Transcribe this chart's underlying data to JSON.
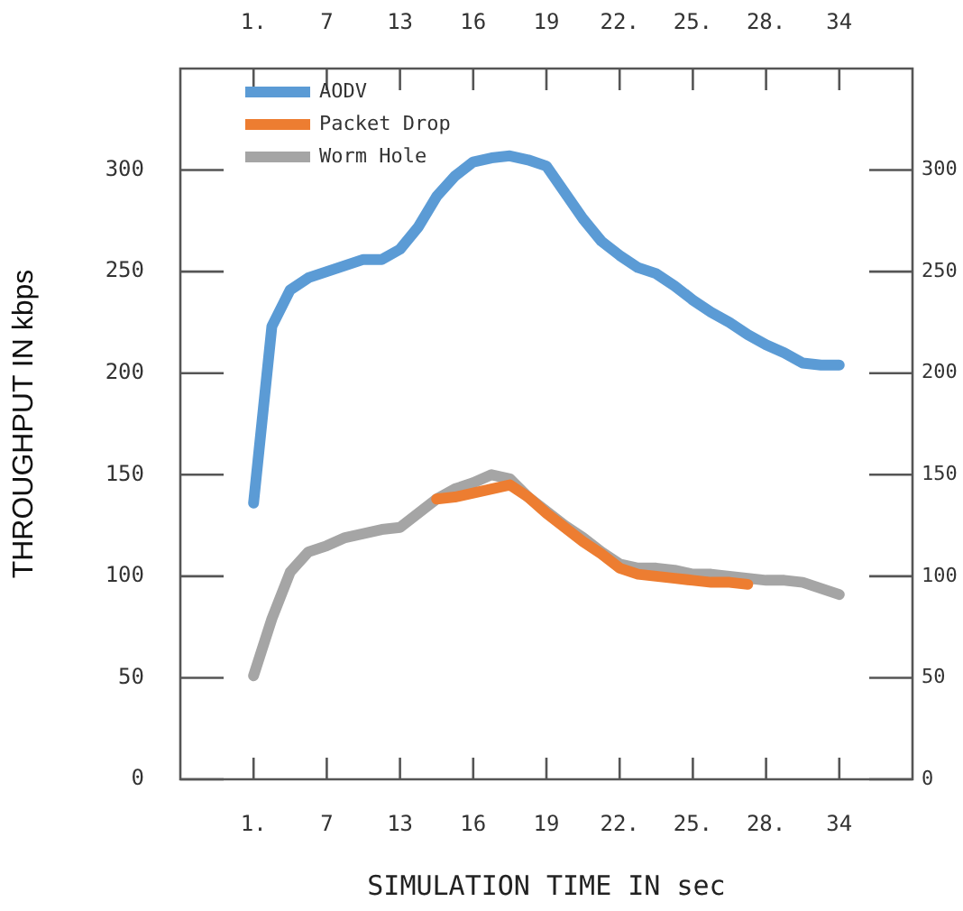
{
  "chart_data": {
    "type": "line",
    "xlabel": "SIMULATION TIME IN sec",
    "ylabel": "THROUGHPUT IN kbps",
    "categories": [
      "1.",
      null,
      null,
      null,
      "7",
      null,
      null,
      null,
      "13",
      null,
      null,
      null,
      "16",
      null,
      null,
      null,
      "19",
      null,
      null,
      null,
      "22.",
      null,
      null,
      null,
      "25.",
      null,
      null,
      null,
      "28.",
      null,
      null,
      null,
      "34"
    ],
    "series": [
      {
        "name": "AODV",
        "color": "#5b9bd5",
        "values": [
          136,
          223,
          241,
          247,
          250,
          253,
          256,
          256,
          261,
          272,
          287,
          297,
          304,
          306,
          307,
          305,
          302,
          289,
          276,
          265,
          258,
          252,
          249,
          243,
          236,
          230,
          225,
          219,
          214,
          210,
          205,
          204,
          204
        ]
      },
      {
        "name": "Packet Drop",
        "color": "#ed7d31",
        "values": [
          null,
          null,
          null,
          null,
          null,
          null,
          null,
          null,
          null,
          null,
          138,
          139,
          141,
          143,
          145,
          139,
          131,
          124,
          117,
          111,
          104,
          101,
          100,
          99,
          98,
          97,
          97,
          96,
          null,
          null,
          null,
          null,
          null
        ]
      },
      {
        "name": "Worm Hole",
        "color": "#a5a5a5",
        "values": [
          51,
          79,
          102,
          112,
          115,
          119,
          121,
          123,
          124,
          131,
          138,
          143,
          146,
          150,
          148,
          139,
          132,
          125,
          119,
          112,
          106,
          104,
          104,
          103,
          101,
          101,
          100,
          99,
          98,
          98,
          97,
          94,
          91
        ]
      }
    ],
    "ylim": [
      0,
      350
    ],
    "yticks": [
      0,
      50,
      100,
      150,
      200,
      250,
      300
    ],
    "y2lim": [
      0,
      350
    ],
    "y2ticks": [
      0,
      50,
      100,
      150,
      200,
      250,
      300
    ],
    "legend": "top left",
    "marker": "none",
    "line_style": "solid"
  }
}
